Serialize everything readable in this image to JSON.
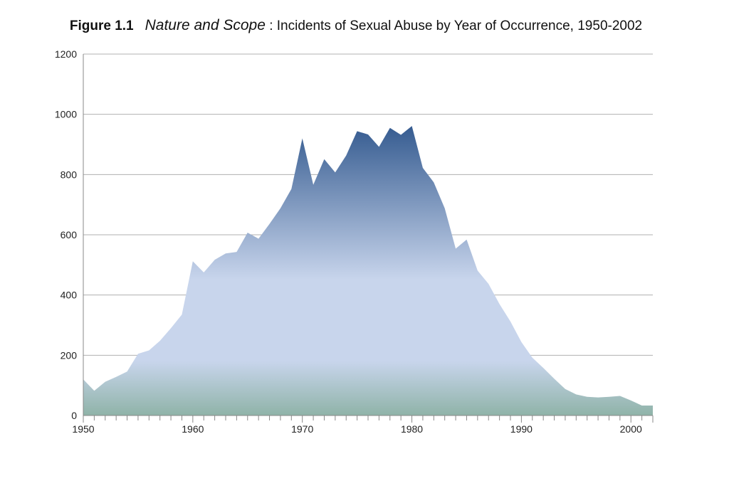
{
  "title": {
    "figure_label": "Figure 1.1",
    "italic_part": "Nature and Scope",
    "rest": " : Incidents of Sexual Abuse by Year of Occurrence, 1950-2002"
  },
  "colors": {
    "area_top": "#2a5289",
    "area_mid": "#c8d5ec",
    "area_bottom": "#8fb3a8",
    "grid": "#b0b0b0",
    "axis": "#888888"
  },
  "chart_data": {
    "type": "area",
    "title": "Figure 1.1 Nature and Scope : Incidents of Sexual Abuse by Year of Occurrence, 1950-2002",
    "xlabel": "",
    "ylabel": "",
    "xlim": [
      1950,
      2002
    ],
    "ylim": [
      0,
      1200
    ],
    "yticks": [
      "0",
      "200",
      "400",
      "600",
      "800",
      "1000",
      "1200"
    ],
    "xtick_labels": [
      "1950",
      "1960",
      "1970",
      "1980",
      "1990",
      "2000"
    ],
    "grid": "horizontal",
    "x": [
      1950,
      1951,
      1952,
      1953,
      1954,
      1955,
      1956,
      1957,
      1958,
      1959,
      1960,
      1961,
      1962,
      1963,
      1964,
      1965,
      1966,
      1967,
      1968,
      1969,
      1970,
      1971,
      1972,
      1973,
      1974,
      1975,
      1976,
      1977,
      1978,
      1979,
      1980,
      1981,
      1982,
      1983,
      1984,
      1985,
      1986,
      1987,
      1988,
      1989,
      1990,
      1991,
      1992,
      1993,
      1994,
      1995,
      1996,
      1997,
      1998,
      1999,
      2000,
      2001,
      2002
    ],
    "series": [
      {
        "values": [
          120,
          82,
          112,
          128,
          146,
          205,
          216,
          248,
          290,
          335,
          512,
          475,
          517,
          538,
          543,
          607,
          587,
          636,
          688,
          752,
          920,
          766,
          851,
          807,
          863,
          944,
          933,
          892,
          955,
          932,
          961,
          822,
          774,
          688,
          554,
          584,
          481,
          437,
          370,
          312,
          244,
          192,
          158,
          122,
          88,
          70,
          62,
          60,
          62,
          65,
          50,
          33,
          33
        ]
      }
    ]
  }
}
